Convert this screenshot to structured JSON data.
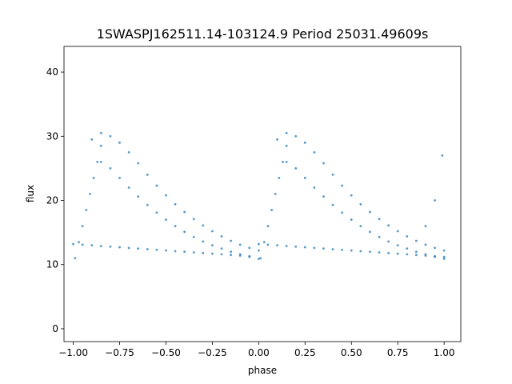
{
  "chart_data": {
    "type": "scatter",
    "title": "1SWASPJ162511.14-103124.9 Period 25031.49609s",
    "xlabel": "phase",
    "ylabel": "flux",
    "xlim": [
      -1.05,
      1.09
    ],
    "ylim": [
      -2.0,
      44.0
    ],
    "xticks": [
      -1.0,
      -0.75,
      -0.5,
      -0.25,
      0.0,
      0.25,
      0.5,
      0.75,
      1.0
    ],
    "xtick_labels": [
      "−1.00",
      "−0.75",
      "−0.50",
      "−0.25",
      "0.00",
      "0.25",
      "0.50",
      "0.75",
      "1.00"
    ],
    "yticks": [
      0,
      10,
      20,
      30,
      40
    ],
    "ytick_labels": [
      "0",
      "10",
      "20",
      "30",
      "40"
    ],
    "grid": false,
    "legend": "none",
    "marker_color": "#1f77b4",
    "series": [
      {
        "x": [
          -1.0,
          -0.95,
          -0.9,
          -0.85,
          -0.8,
          -0.75,
          -0.7,
          -0.65,
          -0.6,
          -0.55,
          -0.5,
          -0.45,
          -0.4,
          -0.35,
          -0.3,
          -0.25,
          -0.2,
          -0.15,
          -0.1,
          -0.05,
          0.0,
          0.05,
          0.1,
          0.15,
          0.2,
          0.25,
          0.3,
          0.35,
          0.4,
          0.45,
          0.5,
          0.55,
          0.6,
          0.65,
          0.7,
          0.75,
          0.8,
          0.85,
          0.9,
          0.95,
          1.0
        ],
        "y": [
          13.2,
          13.1,
          13.0,
          12.9,
          12.8,
          12.7,
          12.6,
          12.5,
          12.4,
          12.3,
          12.2,
          12.1,
          12.0,
          11.9,
          11.8,
          11.7,
          11.6,
          11.5,
          11.4,
          11.3,
          13.2,
          13.1,
          13.0,
          12.9,
          12.8,
          12.7,
          12.6,
          12.5,
          12.4,
          12.3,
          12.2,
          12.1,
          12.0,
          11.9,
          11.8,
          11.7,
          11.6,
          11.5,
          11.4,
          11.3,
          11.2
        ]
      },
      {
        "x": [
          -0.9,
          -0.85,
          -0.8,
          -0.75,
          -0.7,
          -0.65,
          -0.6,
          -0.55,
          -0.5,
          -0.45,
          -0.4,
          -0.35,
          -0.3,
          -0.25,
          -0.2,
          -0.15,
          -0.1,
          -0.05,
          0.0,
          0.1,
          0.15,
          0.2,
          0.25,
          0.3,
          0.35,
          0.4,
          0.45,
          0.5,
          0.55,
          0.6,
          0.65,
          0.7,
          0.75,
          0.8,
          0.85,
          0.9,
          0.95,
          1.0
        ],
        "y": [
          29.5,
          30.5,
          30.0,
          29.0,
          27.5,
          25.8,
          24.0,
          22.3,
          20.8,
          19.4,
          18.2,
          17.1,
          16.1,
          15.2,
          14.4,
          13.7,
          13.1,
          12.6,
          12.2,
          29.5,
          30.5,
          30.0,
          29.0,
          27.5,
          25.8,
          24.0,
          22.3,
          20.8,
          19.4,
          18.2,
          17.1,
          16.1,
          15.2,
          14.4,
          13.7,
          13.1,
          12.6,
          12.2
        ]
      },
      {
        "x": [
          -0.85,
          -0.8,
          -0.75,
          -0.7,
          -0.65,
          -0.6,
          -0.55,
          -0.5,
          -0.45,
          -0.4,
          -0.35,
          -0.3,
          -0.25,
          -0.2,
          -0.15,
          -0.1,
          -0.05,
          0.0,
          0.15,
          0.2,
          0.25,
          0.3,
          0.35,
          0.4,
          0.45,
          0.5,
          0.55,
          0.6,
          0.65,
          0.7,
          0.75,
          0.8,
          0.85,
          0.9,
          0.95,
          1.0
        ],
        "y": [
          26.0,
          25.0,
          23.5,
          22.0,
          20.6,
          19.3,
          18.1,
          17.0,
          16.0,
          15.1,
          14.3,
          13.6,
          13.0,
          12.5,
          12.0,
          11.6,
          11.2,
          10.9,
          26.0,
          25.0,
          23.5,
          22.0,
          20.6,
          19.3,
          18.1,
          17.0,
          16.0,
          15.1,
          14.3,
          13.6,
          13.0,
          12.5,
          12.0,
          11.6,
          11.2,
          10.9
        ]
      },
      {
        "x": [
          -0.99,
          -0.97,
          -0.95,
          -0.93,
          -0.91,
          -0.89,
          -0.87,
          -0.85,
          0.01,
          0.03,
          0.05,
          0.07,
          0.09,
          0.11,
          0.13,
          0.15,
          0.9,
          0.95,
          0.99
        ],
        "y": [
          11.0,
          13.5,
          16.0,
          18.5,
          21.0,
          23.5,
          26.0,
          28.5,
          11.0,
          13.5,
          16.0,
          18.5,
          21.0,
          23.5,
          26.0,
          28.5,
          16.0,
          20.0,
          27.0
        ]
      }
    ]
  }
}
